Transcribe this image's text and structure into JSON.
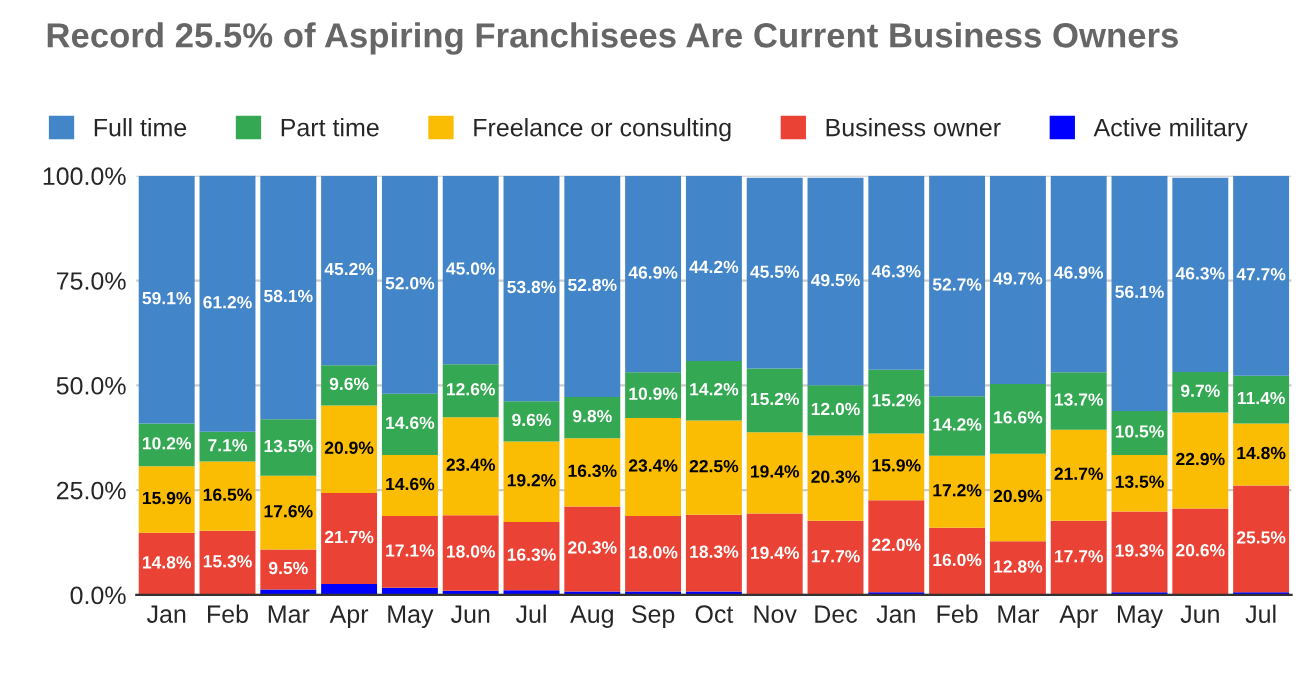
{
  "chart_data": {
    "type": "bar",
    "title": "Record 25.5% of Aspiring Franchisees Are Current Business Owners",
    "stacked": true,
    "legend": "top",
    "grid": "y",
    "categories": [
      "Jan",
      "Feb",
      "Mar",
      "Apr",
      "May",
      "Jun",
      "Jul",
      "Aug",
      "Sep",
      "Oct",
      "Nov",
      "Dec",
      "Jan",
      "Feb",
      "Mar",
      "Apr",
      "May",
      "Jun",
      "Jul"
    ],
    "ylim": [
      0,
      100
    ],
    "yticks": [
      {
        "value": 0,
        "label": "0.0%"
      },
      {
        "value": 25,
        "label": "25.0%"
      },
      {
        "value": 50,
        "label": "50.0%"
      },
      {
        "value": 75,
        "label": "75.0%"
      },
      {
        "value": 100,
        "label": "100.0%"
      }
    ],
    "series": [
      {
        "name": "Active military",
        "color": "#0000ff",
        "values": [
          0,
          0,
          1.3,
          2.6,
          1.7,
          1.0,
          1.1,
          0.8,
          0.8,
          0.8,
          null,
          null,
          0.6,
          0,
          0,
          0,
          0.6,
          null,
          0.6
        ]
      },
      {
        "name": "Business owner",
        "color": "#ea4335",
        "values": [
          14.8,
          15.3,
          9.5,
          21.7,
          17.1,
          18.0,
          16.3,
          20.3,
          18.0,
          18.3,
          19.4,
          17.7,
          22.0,
          16.0,
          12.8,
          17.7,
          19.3,
          20.6,
          25.5
        ],
        "value_labels": [
          "14.8%",
          "15.3%",
          "9.5%",
          "21.7%",
          "17.1%",
          "18.0%",
          "16.3%",
          "20.3%",
          "18.0%",
          "18.3%",
          "19.4%",
          "17.7%",
          "22.0%",
          "16.0%",
          "12.8%",
          "17.7%",
          "19.3%",
          "20.6%",
          "25.5%"
        ]
      },
      {
        "name": "Freelance or consulting",
        "color": "#fbbc04",
        "values": [
          15.9,
          16.5,
          17.6,
          20.9,
          14.6,
          23.4,
          19.2,
          16.3,
          23.4,
          22.5,
          19.4,
          20.3,
          15.9,
          17.2,
          20.9,
          21.7,
          13.5,
          22.9,
          14.8
        ],
        "value_labels": [
          "15.9%",
          "16.5%",
          "17.6%",
          "20.9%",
          "14.6%",
          "23.4%",
          "19.2%",
          "16.3%",
          "23.4%",
          "22.5%",
          "19.4%",
          "20.3%",
          "15.9%",
          "17.2%",
          "20.9%",
          "21.7%",
          "13.5%",
          "22.9%",
          "14.8%"
        ]
      },
      {
        "name": "Part time",
        "color": "#34a853",
        "values": [
          10.2,
          7.1,
          13.5,
          9.6,
          14.6,
          12.6,
          9.6,
          9.8,
          10.9,
          14.2,
          15.2,
          12.0,
          15.2,
          14.2,
          16.6,
          13.7,
          10.5,
          9.7,
          11.4
        ],
        "value_labels": [
          "10.2%",
          "7.1%",
          "13.5%",
          "9.6%",
          "14.6%",
          "12.6%",
          "9.6%",
          "9.8%",
          "10.9%",
          "14.2%",
          "15.2%",
          "12.0%",
          "15.2%",
          "14.2%",
          "16.6%",
          "13.7%",
          "10.5%",
          "9.7%",
          "11.4%"
        ]
      },
      {
        "name": "Full time",
        "color": "#4285c8",
        "values": [
          59.1,
          61.2,
          58.1,
          45.2,
          52.0,
          45.0,
          53.8,
          52.8,
          46.9,
          44.2,
          45.5,
          49.5,
          46.3,
          52.7,
          49.7,
          46.9,
          56.1,
          46.3,
          47.7
        ],
        "value_labels": [
          "59.1%",
          "61.2%",
          "58.1%",
          "45.2%",
          "52.0%",
          "45.0%",
          "53.8%",
          "52.8%",
          "46.9%",
          "44.2%",
          "45.5%",
          "49.5%",
          "46.3%",
          "52.7%",
          "49.7%",
          "46.9%",
          "56.1%",
          "46.3%",
          "47.7%"
        ]
      }
    ]
  }
}
